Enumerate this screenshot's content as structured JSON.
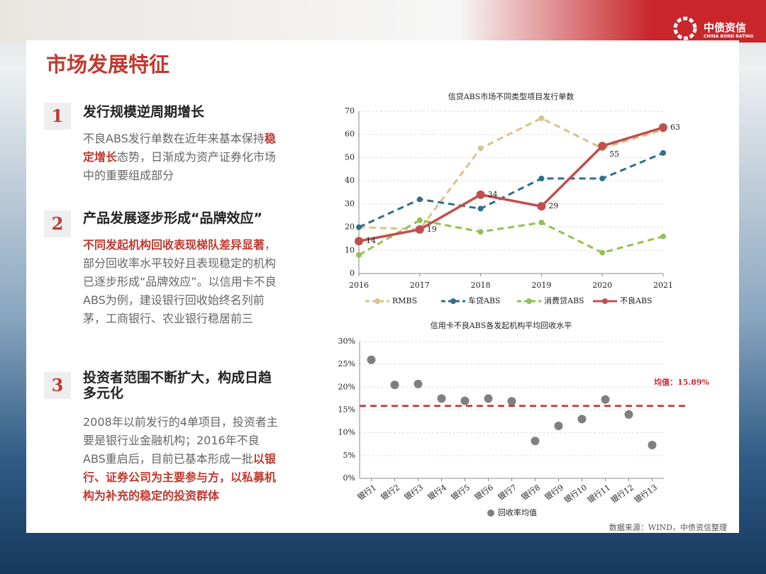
{
  "header": {
    "title": "市场发展特征",
    "logo_name": "中债资信",
    "logo_sub": "CHINA BOND RATING"
  },
  "sections": [
    {
      "number": "1",
      "title": "发行规模逆周期增长",
      "body": [
        {
          "text": "不良ABS发行单数在近年来基本保持",
          "emph": false
        },
        {
          "text": "稳定增长",
          "emph": true
        },
        {
          "text": "态势，日渐成为资产证券化市场中的重要组成部分",
          "emph": false
        }
      ]
    },
    {
      "number": "2",
      "title": "产品发展逐步形成“品牌效应”",
      "body": [
        {
          "text": "不同发起机构回收表现梯队差异显著",
          "emph": true
        },
        {
          "text": "，部分回收率水平较好且表现稳定的机构已逐步形成“品牌效应”。以信用卡不良ABS为例，建设银行回收始终名列前茅，工商银行、农业银行稳居前三",
          "emph": false
        }
      ]
    },
    {
      "number": "3",
      "title": "投资者范围不断扩大，构成日趋多元化",
      "body": [
        {
          "text": "2008年以前发行的4单项目，投资者主要是银行业金融机构；2016年不良ABS重启后，目前已基本形成一批",
          "emph": false
        },
        {
          "text": "以银行、证券公司为主要参与方，以私募机构为补充的稳定的投资群体",
          "emph": true
        }
      ]
    }
  ],
  "source": "数据来源：WIND，中债资信整理",
  "chart_data": [
    {
      "type": "line",
      "title": "信贷ABS市场不同类型项目发行单数",
      "categories": [
        "2016",
        "2017",
        "2018",
        "2019",
        "2020",
        "2021"
      ],
      "ylim": [
        0,
        70
      ],
      "yticks": [
        0,
        10,
        20,
        30,
        40,
        50,
        60,
        70
      ],
      "grid": true,
      "legend": "bottom",
      "series": [
        {
          "name": "RMBS",
          "color": "#d8c48c",
          "dash": true,
          "values": [
            20,
            19,
            54,
            67,
            54,
            62
          ]
        },
        {
          "name": "车贷ABS",
          "color": "#2f6f8f",
          "dash": true,
          "values": [
            20,
            32,
            28,
            41,
            41,
            52
          ]
        },
        {
          "name": "消费贷ABS",
          "color": "#93c054",
          "dash": true,
          "values": [
            8,
            23,
            18,
            22,
            9,
            16
          ]
        },
        {
          "name": "不良ABS",
          "color": "#c0504d",
          "dash": false,
          "show_labels": true,
          "values": [
            14,
            19,
            34,
            29,
            55,
            63
          ]
        }
      ]
    },
    {
      "type": "scatter",
      "title": "信用卡不良ABS各发起机构平均回收水平",
      "categories": [
        "银行1",
        "银行2",
        "银行3",
        "银行4",
        "银行5",
        "银行6",
        "银行7",
        "银行8",
        "银行9",
        "银行10",
        "银行11",
        "银行12",
        "银行13"
      ],
      "ylim": [
        0,
        30
      ],
      "yticks": [
        {
          "value": 0,
          "label": "0%"
        },
        {
          "value": 5,
          "label": "5%"
        },
        {
          "value": 10,
          "label": "10%"
        },
        {
          "value": 15,
          "label": "15%"
        },
        {
          "value": 20,
          "label": "20%"
        },
        {
          "value": 25,
          "label": "25%"
        },
        {
          "value": 30,
          "label": "30%"
        }
      ],
      "grid": true,
      "legend": "bottom",
      "series": [
        {
          "name": "回收率均值",
          "color": "#7f7f7f",
          "values": [
            26,
            20.5,
            20.7,
            17.5,
            17,
            17.5,
            16.9,
            8.2,
            11.5,
            13,
            17.3,
            14,
            7.3
          ]
        }
      ],
      "mean": {
        "value": 15.89,
        "label": "均值：15.89%",
        "color": "#d0262c"
      }
    }
  ]
}
